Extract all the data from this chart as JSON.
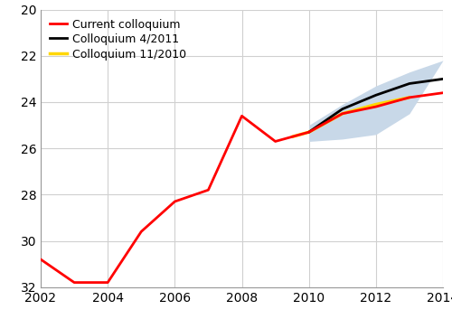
{
  "xlim": [
    2002,
    2014
  ],
  "ylim": [
    32,
    20
  ],
  "yticks": [
    20,
    22,
    24,
    26,
    28,
    30,
    32
  ],
  "xticks": [
    2002,
    2004,
    2006,
    2008,
    2010,
    2012,
    2014
  ],
  "red_x": [
    2002,
    2003,
    2004,
    2005,
    2006,
    2007,
    2008,
    2009,
    2010,
    2011,
    2012,
    2013,
    2014
  ],
  "red_y": [
    30.8,
    31.8,
    31.8,
    29.6,
    28.3,
    27.8,
    24.6,
    25.7,
    25.3,
    24.5,
    24.2,
    23.8,
    23.6
  ],
  "black_x": [
    2010,
    2011,
    2012,
    2013,
    2014
  ],
  "black_y": [
    25.3,
    24.3,
    23.7,
    23.2,
    23.0
  ],
  "yellow_x": [
    2009.5,
    2010,
    2011,
    2012,
    2013
  ],
  "yellow_y": [
    25.5,
    25.3,
    24.5,
    24.1,
    23.8
  ],
  "band_upper": [
    25.7,
    25.6,
    25.4,
    24.5,
    22.2
  ],
  "band_lower": [
    25.0,
    24.1,
    23.3,
    22.7,
    22.2
  ],
  "band_x": [
    2010,
    2011,
    2012,
    2013,
    2014
  ],
  "red_color": "#ff0000",
  "black_color": "#000000",
  "yellow_color": "#ffd700",
  "band_color": "#c8d8e8",
  "legend_labels": [
    "Current colloquium",
    "Colloquium 4/2011",
    "Colloquium 11/2010"
  ],
  "background_color": "#ffffff",
  "grid_color": "#d0d0d0",
  "tick_fontsize": 10,
  "legend_fontsize": 9
}
